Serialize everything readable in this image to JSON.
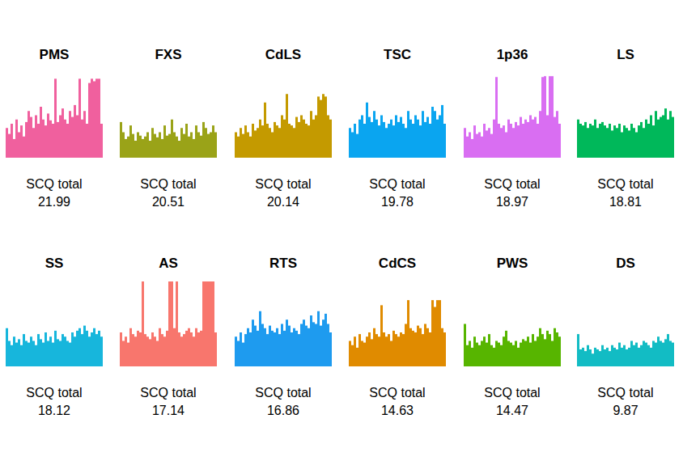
{
  "chart_data": [
    {
      "type": "bar",
      "title": "PMS",
      "color": "#f0609e",
      "caption": "SCQ total",
      "scq_total": 21.99,
      "ylim": [
        0,
        100
      ],
      "tick_labels": false,
      "values": [
        35,
        28,
        40,
        22,
        45,
        30,
        38,
        25,
        42,
        55,
        48,
        35,
        50,
        40,
        60,
        45,
        38,
        52,
        44,
        40,
        93,
        42,
        50,
        58,
        45,
        40,
        55,
        48,
        62,
        50,
        93,
        45,
        55,
        40,
        88,
        93,
        90,
        93,
        93,
        40
      ]
    },
    {
      "type": "bar",
      "title": "FXS",
      "color": "#9aa318",
      "caption": "SCQ total",
      "scq_total": 20.51,
      "ylim": [
        0,
        100
      ],
      "tick_labels": false,
      "values": [
        42,
        30,
        22,
        25,
        38,
        28,
        20,
        30,
        26,
        22,
        25,
        30,
        20,
        35,
        28,
        24,
        30,
        22,
        38,
        26,
        28,
        45,
        30,
        25,
        20,
        35,
        28,
        40,
        25,
        30,
        22,
        38,
        30,
        26,
        42,
        35,
        28,
        30,
        38,
        30
      ]
    },
    {
      "type": "bar",
      "title": "CdLS",
      "color": "#c49a00",
      "caption": "SCQ total",
      "scq_total": 20.14,
      "ylim": [
        0,
        100
      ],
      "tick_labels": false,
      "values": [
        30,
        25,
        35,
        28,
        38,
        30,
        25,
        40,
        32,
        35,
        45,
        38,
        65,
        40,
        35,
        30,
        42,
        38,
        35,
        50,
        45,
        75,
        40,
        38,
        35,
        48,
        42,
        50,
        45,
        40,
        38,
        55,
        45,
        50,
        72,
        68,
        75,
        72,
        50,
        45
      ]
    },
    {
      "type": "bar",
      "title": "TSC",
      "color": "#0aa5f0",
      "caption": "SCQ total",
      "scq_total": 19.78,
      "ylim": [
        0,
        100
      ],
      "tick_labels": false,
      "values": [
        35,
        30,
        40,
        28,
        45,
        50,
        40,
        65,
        48,
        42,
        55,
        45,
        38,
        50,
        42,
        35,
        40,
        45,
        38,
        50,
        42,
        48,
        40,
        35,
        55,
        45,
        40,
        50,
        45,
        38,
        55,
        42,
        48,
        40,
        60,
        55,
        45,
        50,
        62,
        40
      ]
    },
    {
      "type": "bar",
      "title": "1p36",
      "color": "#d96ef2",
      "caption": "SCQ total",
      "scq_total": 18.97,
      "ylim": [
        0,
        100
      ],
      "tick_labels": false,
      "values": [
        35,
        25,
        30,
        22,
        38,
        28,
        30,
        25,
        40,
        32,
        35,
        28,
        45,
        95,
        40,
        35,
        38,
        30,
        45,
        40,
        35,
        42,
        38,
        48,
        40,
        45,
        42,
        50,
        45,
        48,
        40,
        55,
        95,
        96,
        50,
        96,
        96,
        48,
        55,
        40
      ]
    },
    {
      "type": "bar",
      "title": "LS",
      "color": "#00b85a",
      "caption": "SCQ total",
      "scq_total": 18.81,
      "ylim": [
        0,
        100
      ],
      "tick_labels": false,
      "values": [
        45,
        40,
        38,
        42,
        35,
        40,
        38,
        45,
        35,
        40,
        42,
        38,
        35,
        40,
        32,
        38,
        35,
        40,
        30,
        38,
        35,
        32,
        40,
        35,
        30,
        38,
        42,
        35,
        45,
        40,
        50,
        38,
        55,
        45,
        48,
        50,
        58,
        45,
        55,
        48
      ]
    },
    {
      "type": "bar",
      "title": "SS",
      "color": "#17b6dc",
      "caption": "SCQ total",
      "scq_total": 18.12,
      "ylim": [
        0,
        100
      ],
      "tick_labels": false,
      "values": [
        45,
        30,
        25,
        35,
        28,
        32,
        25,
        38,
        30,
        28,
        35,
        30,
        25,
        38,
        32,
        28,
        40,
        30,
        35,
        28,
        42,
        32,
        30,
        38,
        35,
        30,
        28,
        40,
        35,
        42,
        45,
        38,
        48,
        42,
        35,
        40,
        45,
        38,
        42,
        35
      ]
    },
    {
      "type": "bar",
      "title": "AS",
      "color": "#f8766d",
      "caption": "SCQ total",
      "scq_total": 17.14,
      "ylim": [
        0,
        100
      ],
      "tick_labels": false,
      "values": [
        40,
        30,
        35,
        28,
        45,
        38,
        35,
        42,
        40,
        100,
        38,
        35,
        32,
        40,
        35,
        30,
        45,
        38,
        35,
        42,
        100,
        100,
        45,
        100,
        40,
        35,
        38,
        42,
        45,
        40,
        35,
        45,
        40,
        42,
        100,
        100,
        100,
        100,
        100,
        40
      ]
    },
    {
      "type": "bar",
      "title": "RTS",
      "color": "#1e9bef",
      "caption": "SCQ total",
      "scq_total": 16.86,
      "ylim": [
        0,
        100
      ],
      "tick_labels": false,
      "values": [
        35,
        30,
        40,
        28,
        38,
        45,
        40,
        55,
        48,
        42,
        65,
        50,
        45,
        38,
        48,
        42,
        40,
        45,
        38,
        50,
        42,
        55,
        48,
        40,
        45,
        42,
        38,
        50,
        55,
        48,
        45,
        60,
        52,
        50,
        65,
        48,
        55,
        62,
        50,
        40
      ]
    },
    {
      "type": "bar",
      "title": "CdCS",
      "color": "#e08b00",
      "caption": "SCQ total",
      "scq_total": 14.63,
      "ylim": [
        0,
        100
      ],
      "tick_labels": false,
      "values": [
        30,
        25,
        35,
        22,
        38,
        30,
        28,
        35,
        40,
        32,
        45,
        38,
        35,
        72,
        40,
        35,
        38,
        30,
        42,
        38,
        35,
        40,
        38,
        50,
        78,
        45,
        42,
        40,
        48,
        45,
        38,
        50,
        45,
        40,
        78,
        70,
        78,
        78,
        45,
        40
      ]
    },
    {
      "type": "bar",
      "title": "PWS",
      "color": "#57b500",
      "caption": "SCQ total",
      "scq_total": 14.47,
      "ylim": [
        0,
        100
      ],
      "tick_labels": false,
      "values": [
        50,
        25,
        30,
        22,
        35,
        28,
        25,
        30,
        35,
        28,
        38,
        25,
        22,
        30,
        28,
        25,
        35,
        42,
        30,
        28,
        25,
        30,
        22,
        28,
        32,
        30,
        35,
        28,
        38,
        30,
        35,
        45,
        38,
        32,
        42,
        38,
        30,
        45,
        40,
        35
      ]
    },
    {
      "type": "bar",
      "title": "DS",
      "color": "#12bcc4",
      "caption": "SCQ total",
      "scq_total": 9.87,
      "ylim": [
        0,
        100
      ],
      "tick_labels": false,
      "values": [
        38,
        20,
        22,
        18,
        25,
        20,
        15,
        22,
        20,
        18,
        25,
        20,
        22,
        18,
        25,
        22,
        20,
        28,
        22,
        25,
        20,
        22,
        30,
        25,
        28,
        22,
        25,
        30,
        28,
        25,
        22,
        30,
        28,
        35,
        30,
        28,
        32,
        38,
        30,
        28
      ]
    }
  ]
}
